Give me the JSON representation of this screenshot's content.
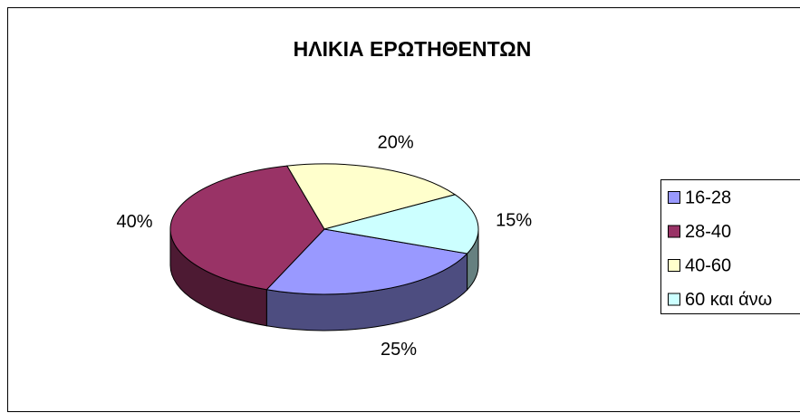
{
  "chart_data": {
    "type": "pie3d",
    "title": "ΗΛΙΚΙΑ ΕΡΩΤΗΘΕΝΤΩΝ",
    "categories": [
      "16-28",
      "28-40",
      "40-60",
      "60 και άνω"
    ],
    "values": [
      25,
      40,
      20,
      15
    ],
    "value_labels": [
      "25%",
      "40%",
      "20%",
      "15%"
    ],
    "colors": [
      "#9999ff",
      "#993366",
      "#ffffcc",
      "#ccffff"
    ],
    "legend": "right"
  }
}
